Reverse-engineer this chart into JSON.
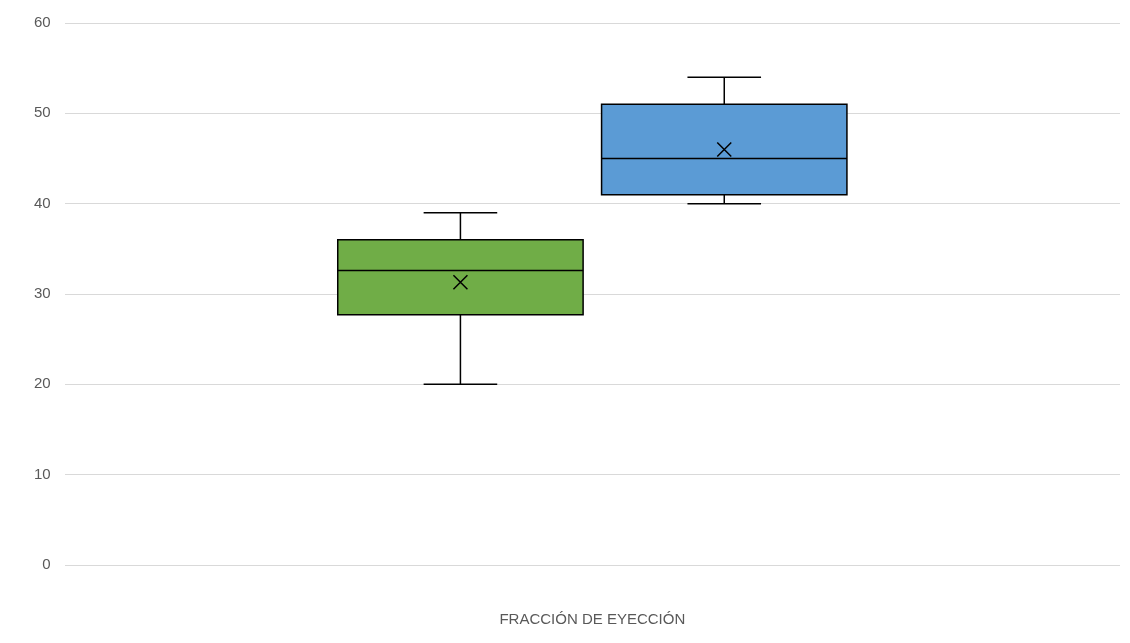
{
  "chart_data": {
    "type": "box",
    "categories": [
      null
    ],
    "xlabel": "FRACCIÓN DE EYECCIÓN",
    "series": [
      {
        "color": "#70ad47",
        "boxes": [
          {
            "low": 20,
            "q1": 27.7,
            "median": 32.6,
            "q3": 36,
            "high": 39,
            "mean": 31.3
          }
        ]
      },
      {
        "color": "#5b9bd5",
        "boxes": [
          {
            "low": 40,
            "q1": 41,
            "median": 45,
            "q3": 51,
            "high": 54,
            "mean": 46
          }
        ]
      }
    ],
    "ylim": [
      0,
      60
    ],
    "yticks": [
      0,
      10,
      20,
      30,
      40,
      50,
      60
    ],
    "grid": "y",
    "legend": false
  }
}
